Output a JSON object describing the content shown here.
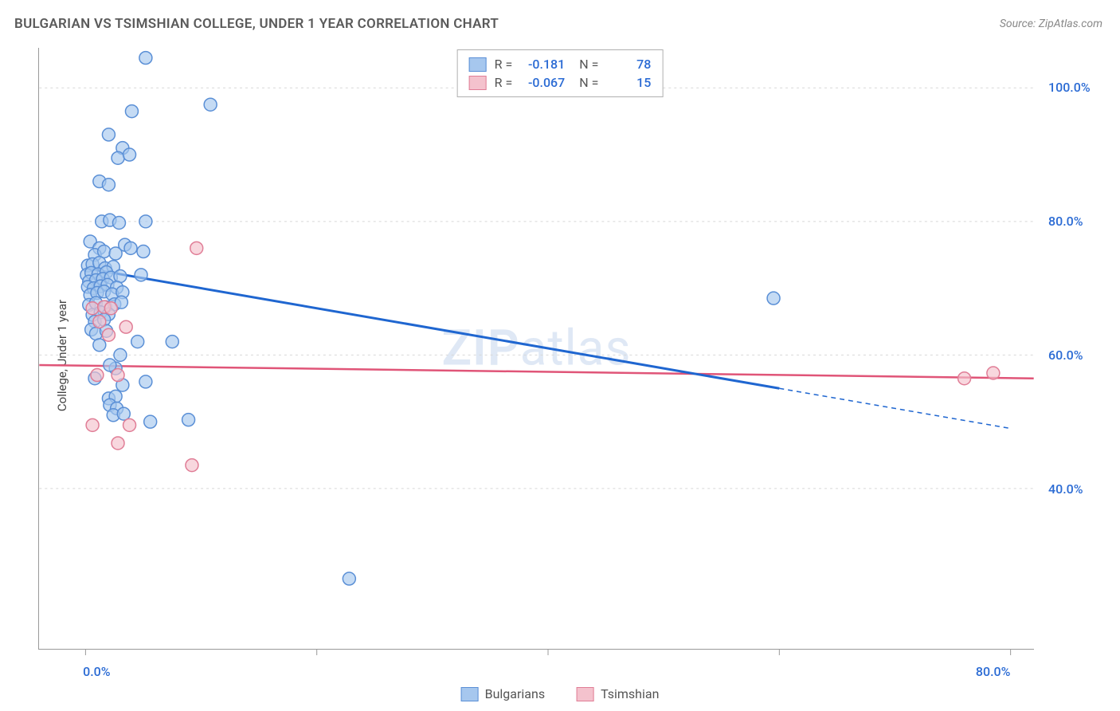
{
  "title": "BULGARIAN VS TSIMSHIAN COLLEGE, UNDER 1 YEAR CORRELATION CHART",
  "source": "Source: ZipAtlas.com",
  "watermark": "ZIPatlas",
  "y_axis_label": "College, Under 1 year",
  "chart": {
    "type": "scatter",
    "background_color": "#ffffff",
    "grid_color": "#d8d8d8",
    "axis_color": "#999999",
    "tick_color": "#333333",
    "x_domain": [
      -4,
      82
    ],
    "y_domain": [
      16,
      106
    ],
    "x_ticks": [
      0,
      20,
      40,
      60,
      80
    ],
    "y_ticks": [
      40,
      60,
      80,
      100
    ],
    "x_tick_labels": {
      "0": "0.0%",
      "80": "80.0%"
    },
    "y_tick_labels": {
      "40": "40.0%",
      "60": "60.0%",
      "80": "80.0%",
      "100": "100.0%"
    },
    "tick_label_color": "#2b6bd4",
    "tick_font_size": 16,
    "marker_radius": 8,
    "marker_stroke_width": 1.5,
    "series": [
      {
        "name": "Bulgarians",
        "color_fill": "#a6c7ee",
        "color_stroke": "#5a8fd6",
        "line_color": "#1f66d0",
        "line_width": 3,
        "r_value": "-0.181",
        "n_value": "78",
        "regression": {
          "x1": 0,
          "y1": 73,
          "x2_solid": 60,
          "y2_solid": 55,
          "x2_dash": 80,
          "y2_dash": 49
        },
        "points": [
          [
            5.2,
            104.5
          ],
          [
            4,
            96.5
          ],
          [
            10.8,
            97.5
          ],
          [
            2,
            93
          ],
          [
            3.2,
            91
          ],
          [
            2.8,
            89.5
          ],
          [
            3.8,
            90
          ],
          [
            1.2,
            86
          ],
          [
            2,
            85.5
          ],
          [
            1.4,
            80
          ],
          [
            2.1,
            80.2
          ],
          [
            2.9,
            79.8
          ],
          [
            5.2,
            80
          ],
          [
            0.4,
            77
          ],
          [
            1.2,
            76
          ],
          [
            3.4,
            76.5
          ],
          [
            3.9,
            76
          ],
          [
            0.8,
            75
          ],
          [
            1.6,
            75.5
          ],
          [
            2.6,
            75.2
          ],
          [
            5,
            75.5
          ],
          [
            0.2,
            73.4
          ],
          [
            0.6,
            73.6
          ],
          [
            1.2,
            73.8
          ],
          [
            1.7,
            73
          ],
          [
            2.4,
            73.2
          ],
          [
            0.1,
            72
          ],
          [
            0.5,
            72.3
          ],
          [
            1.1,
            72.1
          ],
          [
            1.8,
            72.4
          ],
          [
            0.3,
            71
          ],
          [
            0.9,
            71.2
          ],
          [
            1.5,
            71.4
          ],
          [
            2.2,
            71.6
          ],
          [
            3,
            71.8
          ],
          [
            0.2,
            70.2
          ],
          [
            0.7,
            70
          ],
          [
            1.3,
            70.3
          ],
          [
            1.9,
            70.5
          ],
          [
            2.7,
            70.1
          ],
          [
            0.4,
            69
          ],
          [
            1,
            69.3
          ],
          [
            1.6,
            69.5
          ],
          [
            2.3,
            69.1
          ],
          [
            3.2,
            69.4
          ],
          [
            0.3,
            67.5
          ],
          [
            0.9,
            67.8
          ],
          [
            1.7,
            67.2
          ],
          [
            2.5,
            67.6
          ],
          [
            3.1,
            67.9
          ],
          [
            0.6,
            66
          ],
          [
            1.3,
            66.4
          ],
          [
            2,
            66.1
          ],
          [
            0.8,
            65
          ],
          [
            1.6,
            65.3
          ],
          [
            0.5,
            63.8
          ],
          [
            0.9,
            63.2
          ],
          [
            1.8,
            63.6
          ],
          [
            4.8,
            72
          ],
          [
            59.5,
            68.5
          ],
          [
            1.2,
            61.5
          ],
          [
            4.5,
            62
          ],
          [
            7.5,
            62
          ],
          [
            2.6,
            58
          ],
          [
            0.8,
            56.5
          ],
          [
            5.2,
            56
          ],
          [
            3.2,
            55.5
          ],
          [
            2,
            53.5
          ],
          [
            2.6,
            53.8
          ],
          [
            2.1,
            52.5
          ],
          [
            2.7,
            52
          ],
          [
            2.4,
            51
          ],
          [
            3.3,
            51.2
          ],
          [
            5.6,
            50
          ],
          [
            8.9,
            50.3
          ],
          [
            22.8,
            26.5
          ],
          [
            2.1,
            58.5
          ],
          [
            3.0,
            60
          ]
        ]
      },
      {
        "name": "Tsimshian",
        "color_fill": "#f4c2cd",
        "color_stroke": "#e07d96",
        "line_color": "#e05578",
        "line_width": 2.5,
        "r_value": "-0.067",
        "n_value": "15",
        "regression": {
          "x1": -4,
          "y1": 58.5,
          "x2_solid": 82,
          "y2_solid": 56.5,
          "x2_dash": 82,
          "y2_dash": 56.5
        },
        "points": [
          [
            0.6,
            67
          ],
          [
            1.6,
            67.2
          ],
          [
            2.2,
            67
          ],
          [
            9.6,
            76
          ],
          [
            3.5,
            64.2
          ],
          [
            1,
            57
          ],
          [
            2.8,
            57
          ],
          [
            0.6,
            49.5
          ],
          [
            3.8,
            49.5
          ],
          [
            2.8,
            46.8
          ],
          [
            9.2,
            43.5
          ],
          [
            76,
            56.5
          ],
          [
            78.5,
            57.3
          ],
          [
            2,
            63
          ],
          [
            1.2,
            65
          ]
        ]
      }
    ]
  }
}
